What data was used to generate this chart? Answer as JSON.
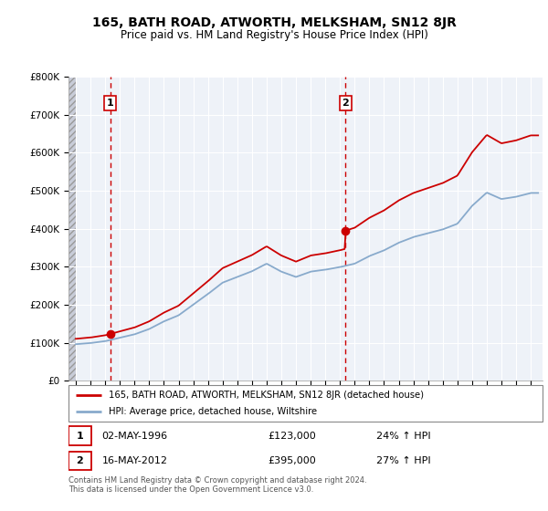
{
  "title": "165, BATH ROAD, ATWORTH, MELKSHAM, SN12 8JR",
  "subtitle": "Price paid vs. HM Land Registry's House Price Index (HPI)",
  "ylim": [
    0,
    800000
  ],
  "yticks": [
    0,
    100000,
    200000,
    300000,
    400000,
    500000,
    600000,
    700000,
    800000
  ],
  "ytick_labels": [
    "£0",
    "£100K",
    "£200K",
    "£300K",
    "£400K",
    "£500K",
    "£600K",
    "£700K",
    "£800K"
  ],
  "sale1_year": 1996.35,
  "sale1_price": 123000,
  "sale1_label": "1",
  "sale2_year": 2012.37,
  "sale2_price": 395000,
  "sale2_label": "2",
  "line_color_property": "#cc0000",
  "line_color_hpi": "#88aacc",
  "marker_color": "#cc0000",
  "vline_color": "#cc0000",
  "legend_label_property": "165, BATH ROAD, ATWORTH, MELKSHAM, SN12 8JR (detached house)",
  "legend_label_hpi": "HPI: Average price, detached house, Wiltshire",
  "table_row1": [
    "1",
    "02-MAY-1996",
    "£123,000",
    "24% ↑ HPI"
  ],
  "table_row2": [
    "2",
    "16-MAY-2012",
    "£395,000",
    "27% ↑ HPI"
  ],
  "footer": "Contains HM Land Registry data © Crown copyright and database right 2024.\nThis data is licensed under the Open Government Licence v3.0.",
  "xlim_start": 1993.5,
  "xlim_end": 2025.8,
  "hpi_years": [
    1994,
    1995,
    1996,
    1997,
    1998,
    1999,
    2000,
    2001,
    2002,
    2003,
    2004,
    2005,
    2006,
    2007,
    2008,
    2009,
    2010,
    2011,
    2012,
    2013,
    2014,
    2015,
    2016,
    2017,
    2018,
    2019,
    2020,
    2021,
    2022,
    2023,
    2024,
    2025
  ],
  "hpi_values": [
    96000,
    99000,
    104000,
    113000,
    122000,
    136000,
    156000,
    172000,
    200000,
    228000,
    258000,
    273000,
    288000,
    308000,
    287000,
    273000,
    287000,
    292000,
    299000,
    308000,
    328000,
    343000,
    363000,
    378000,
    388000,
    398000,
    413000,
    460000,
    495000,
    478000,
    484000,
    494000
  ],
  "bg_color": "#eef2f8",
  "grid_color": "white",
  "hatch_color": "#c8ccd8"
}
